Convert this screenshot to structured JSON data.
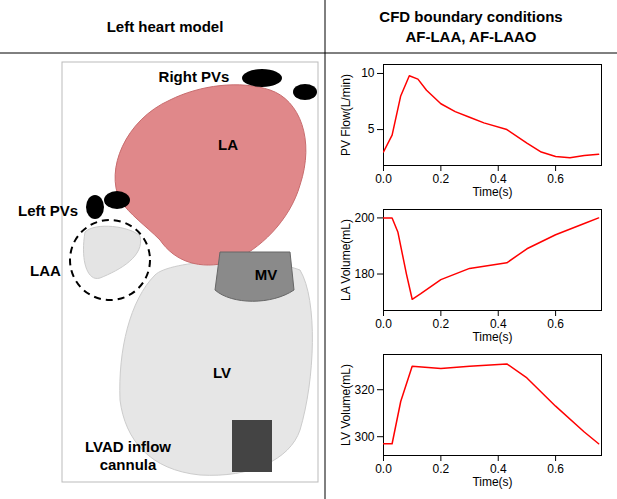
{
  "header": {
    "left": "Left heart model",
    "right": [
      "CFD boundary conditions",
      "AF-LAA, AF-LAAO"
    ]
  },
  "model_labels": {
    "right_pvs": "Right PVs",
    "la": "LA",
    "left_pvs": "Left PVs",
    "laa": "LAA",
    "mv": "MV",
    "lv": "LV",
    "cannula": "LVAD inflow cannula"
  },
  "chart_data": [
    {
      "type": "line",
      "x_label": "Time(s)",
      "y_label": "PV Flow(L/min)",
      "color": "#ff0000",
      "x": [
        0,
        0.03,
        0.06,
        0.09,
        0.12,
        0.15,
        0.2,
        0.25,
        0.3,
        0.35,
        0.43,
        0.5,
        0.55,
        0.6,
        0.65,
        0.7,
        0.75
      ],
      "values": [
        3.0,
        4.5,
        8.0,
        9.8,
        9.5,
        8.5,
        7.3,
        6.6,
        6.1,
        5.6,
        5.0,
        3.8,
        3.0,
        2.6,
        2.5,
        2.7,
        2.8
      ],
      "xlim": [
        0,
        0.76
      ],
      "xticks": [
        0,
        0.2,
        0.4,
        0.6
      ],
      "ylim": [
        1.8,
        10.8
      ],
      "yticks": [
        5,
        10
      ]
    },
    {
      "type": "line",
      "x_label": "Time(s)",
      "y_label": "LA Volume(mL)",
      "color": "#ff0000",
      "x": [
        0,
        0.03,
        0.05,
        0.08,
        0.1,
        0.13,
        0.2,
        0.3,
        0.43,
        0.5,
        0.6,
        0.7,
        0.75
      ],
      "values": [
        200,
        200,
        195,
        180,
        171,
        173,
        178,
        182,
        184,
        189,
        194,
        198,
        200
      ],
      "xlim": [
        0,
        0.76
      ],
      "xticks": [
        0,
        0.2,
        0.4,
        0.6
      ],
      "ylim": [
        167,
        203
      ],
      "yticks": [
        180,
        200
      ]
    },
    {
      "type": "line",
      "x_label": "Time(s)",
      "y_label": "LV Volume(mL)",
      "color": "#ff0000",
      "x": [
        0,
        0.03,
        0.06,
        0.1,
        0.2,
        0.3,
        0.43,
        0.5,
        0.6,
        0.7,
        0.75
      ],
      "values": [
        297,
        297,
        315,
        330,
        329,
        330,
        331,
        325,
        313,
        302,
        297
      ],
      "xlim": [
        0,
        0.76
      ],
      "xticks": [
        0,
        0.2,
        0.4,
        0.6
      ],
      "ylim": [
        292,
        335
      ],
      "yticks": [
        300,
        320
      ]
    }
  ]
}
